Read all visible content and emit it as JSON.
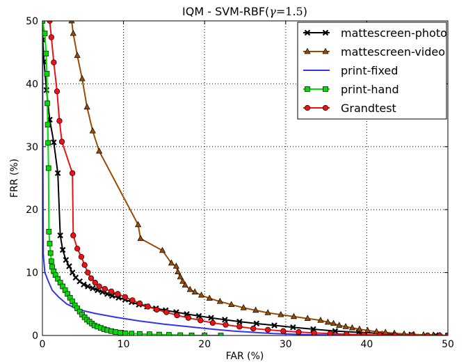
{
  "chart_data": {
    "type": "line",
    "title_main": "IQM - SVM-RBF(",
    "title_gamma": "γ",
    "title_eq": "=",
    "title_num": "1.5",
    "title_close": ")",
    "xlabel": "FAR (%)",
    "ylabel": "FRR (%)",
    "xlim": [
      0,
      50
    ],
    "ylim": [
      0,
      50
    ],
    "xticks": [
      0,
      10,
      20,
      30,
      40,
      50
    ],
    "yticks": [
      0,
      10,
      20,
      30,
      40,
      50
    ],
    "grid": true,
    "grid_style": "dotted",
    "legend_position": "top-right",
    "series": [
      {
        "name": "mattescreen-photo",
        "color": "#000000",
        "marker": "x",
        "x": [
          0.0,
          0.05,
          0.2,
          0.5,
          0.9,
          1.4,
          1.9,
          2.2,
          2.5,
          2.9,
          3.3,
          3.7,
          4.1,
          4.6,
          5.1,
          5.6,
          6.2,
          6.8,
          7.4,
          8.0,
          8.6,
          9.4,
          10.2,
          11.0,
          11.9,
          12.9,
          14.0,
          15.2,
          16.5,
          17.8,
          19.3,
          20.8,
          22.5,
          24.3,
          26.4,
          28.6,
          30.9,
          33.4,
          36.1,
          39.0,
          42.1,
          45.5,
          48.5,
          50.0
        ],
        "y": [
          50,
          47,
          43.5,
          39,
          34.3,
          30.7,
          25.8,
          15.9,
          13.6,
          12.0,
          11.0,
          10.0,
          9.2,
          8.6,
          8.1,
          7.8,
          7.5,
          7.2,
          6.9,
          6.6,
          6.3,
          6.0,
          5.7,
          5.3,
          4.9,
          4.6,
          4.3,
          4.0,
          3.7,
          3.4,
          3.1,
          2.8,
          2.5,
          2.2,
          1.9,
          1.6,
          1.3,
          1.0,
          0.7,
          0.5,
          0.3,
          0.15,
          0.05,
          0.0
        ]
      },
      {
        "name": "mattescreen-video",
        "color": "#994c00",
        "marker": "triangle",
        "x": [
          3.6,
          3.8,
          4.3,
          4.9,
          5.5,
          6.2,
          7.0,
          11.8,
          12.1,
          14.8,
          15.9,
          16.5,
          16.7,
          17.0,
          17.3,
          17.6,
          18.2,
          18.8,
          19.6,
          20.6,
          21.9,
          23.3,
          24.8,
          26.3,
          27.8,
          29.4,
          31.0,
          32.7,
          34.3,
          35.2,
          35.9,
          36.6,
          37.4,
          38.2,
          39.1,
          40.1,
          41.2,
          42.3,
          43.4,
          44.6,
          45.8,
          47.0,
          48.2,
          49.0,
          50.0
        ],
        "y": [
          50,
          48,
          44.5,
          40.8,
          36.3,
          32.5,
          29.3,
          17.6,
          15.4,
          13.5,
          11.5,
          11.0,
          10.1,
          9.3,
          8.6,
          8.0,
          7.3,
          6.9,
          6.4,
          5.9,
          5.4,
          4.9,
          4.4,
          4.0,
          3.6,
          3.3,
          3.0,
          2.7,
          2.4,
          2.1,
          1.9,
          1.6,
          1.4,
          1.2,
          1.0,
          0.8,
          0.6,
          0.5,
          0.35,
          0.25,
          0.15,
          0.1,
          0.05,
          0.02,
          0.0
        ]
      },
      {
        "name": "print-fixed",
        "color": "#3333ee",
        "marker": "none",
        "x": [
          0.0,
          0.1,
          0.3,
          0.7,
          1.2,
          2.0,
          3.0,
          4.5,
          6.5,
          9.0,
          12.0,
          15.0,
          18.0,
          21.0,
          23.5,
          26.0,
          28.5,
          31.0,
          34.0,
          37.0,
          40.0
        ],
        "y": [
          50,
          13.0,
          10.0,
          8.7,
          7.2,
          6.1,
          5.0,
          4.1,
          3.5,
          2.9,
          2.3,
          1.8,
          1.4,
          1.0,
          0.7,
          0.5,
          0.3,
          0.2,
          0.1,
          0.05,
          0.0
        ]
      },
      {
        "name": "print-hand",
        "color": "#00dd00",
        "marker": "square",
        "x": [
          0.0,
          0.3,
          0.45,
          0.55,
          0.6,
          0.65,
          0.7,
          0.75,
          0.8,
          0.9,
          1.0,
          1.1,
          1.2,
          1.4,
          1.6,
          1.9,
          2.2,
          2.5,
          2.8,
          3.1,
          3.4,
          3.7,
          4.0,
          4.3,
          4.6,
          4.9,
          5.2,
          5.5,
          5.8,
          6.1,
          6.4,
          6.8,
          7.2,
          7.6,
          8.0,
          8.5,
          9.0,
          9.6,
          10.2,
          11.0,
          12.0,
          13.2,
          14.4,
          15.6,
          17.0,
          18.4,
          20.0,
          22.0
        ],
        "y": [
          50,
          48.0,
          44.8,
          41.6,
          36.9,
          33.5,
          30.6,
          26.6,
          16.5,
          14.6,
          13.1,
          11.8,
          10.9,
          10.2,
          9.6,
          9.0,
          8.4,
          7.8,
          7.2,
          6.6,
          6.0,
          5.4,
          4.8,
          4.3,
          3.8,
          3.3,
          2.9,
          2.5,
          2.2,
          1.9,
          1.6,
          1.4,
          1.2,
          1.0,
          0.85,
          0.7,
          0.55,
          0.45,
          0.35,
          0.3,
          0.25,
          0.2,
          0.15,
          0.1,
          0.05,
          0.02,
          0.0,
          0.0
        ]
      },
      {
        "name": "Grandtest",
        "color": "#ee1111",
        "marker": "circle",
        "x": [
          0.9,
          1.1,
          1.4,
          1.8,
          2.1,
          2.4,
          3.7,
          3.8,
          4.3,
          4.8,
          5.2,
          5.6,
          6.0,
          6.5,
          7.0,
          7.7,
          8.5,
          9.3,
          10.2,
          11.1,
          12.0,
          13.0,
          14.1,
          15.3,
          16.6,
          18.0,
          19.5,
          21.0,
          22.6,
          24.3,
          26.0,
          27.8,
          29.7,
          31.6,
          33.5,
          35.5,
          37.5,
          39.6,
          41.6,
          43.5,
          45.5,
          47.5,
          49.0,
          50.0
        ],
        "y": [
          50,
          47.4,
          43.4,
          38.8,
          34.1,
          30.8,
          25.8,
          15.9,
          13.8,
          12.5,
          11.2,
          10.0,
          9.1,
          8.4,
          7.8,
          7.4,
          7.0,
          6.6,
          6.1,
          5.6,
          5.1,
          4.6,
          4.1,
          3.7,
          3.2,
          2.8,
          2.4,
          2.0,
          1.7,
          1.4,
          1.1,
          0.9,
          0.7,
          0.55,
          0.4,
          0.3,
          0.2,
          0.12,
          0.07,
          0.04,
          0.02,
          0.01,
          0.0,
          0.0
        ]
      }
    ]
  }
}
